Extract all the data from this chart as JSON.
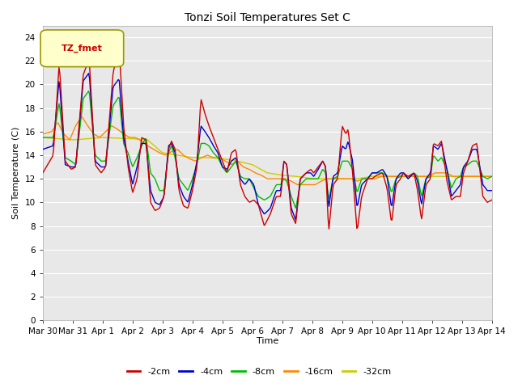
{
  "title": "Tonzi Soil Temperatures Set C",
  "xlabel": "Time",
  "ylabel": "Soil Temperature (C)",
  "legend_label": "TZ_fmet",
  "series_names": [
    "-2cm",
    "-4cm",
    "-8cm",
    "-16cm",
    "-32cm"
  ],
  "series_colors": [
    "#cc0000",
    "#0000cc",
    "#00bb00",
    "#ff8800",
    "#cccc00"
  ],
  "ylim": [
    0,
    25
  ],
  "yticks": [
    0,
    2,
    4,
    6,
    8,
    10,
    12,
    14,
    16,
    18,
    20,
    22,
    24
  ],
  "xtick_labels": [
    "Mar 30",
    "Mar 31",
    "Apr 1",
    "Apr 2",
    "Apr 3",
    "Apr 4",
    "Apr 5",
    "Apr 6",
    "Apr 7",
    "Apr 8",
    "Apr 9",
    "Apr 10",
    "Apr 11",
    "Apr 12",
    "Apr 13",
    "Apr 14"
  ],
  "plot_bg_color": "#e8e8e8",
  "fig_bg_color": "#ffffff",
  "grid_color": "#ffffff",
  "linewidth": 1.0
}
